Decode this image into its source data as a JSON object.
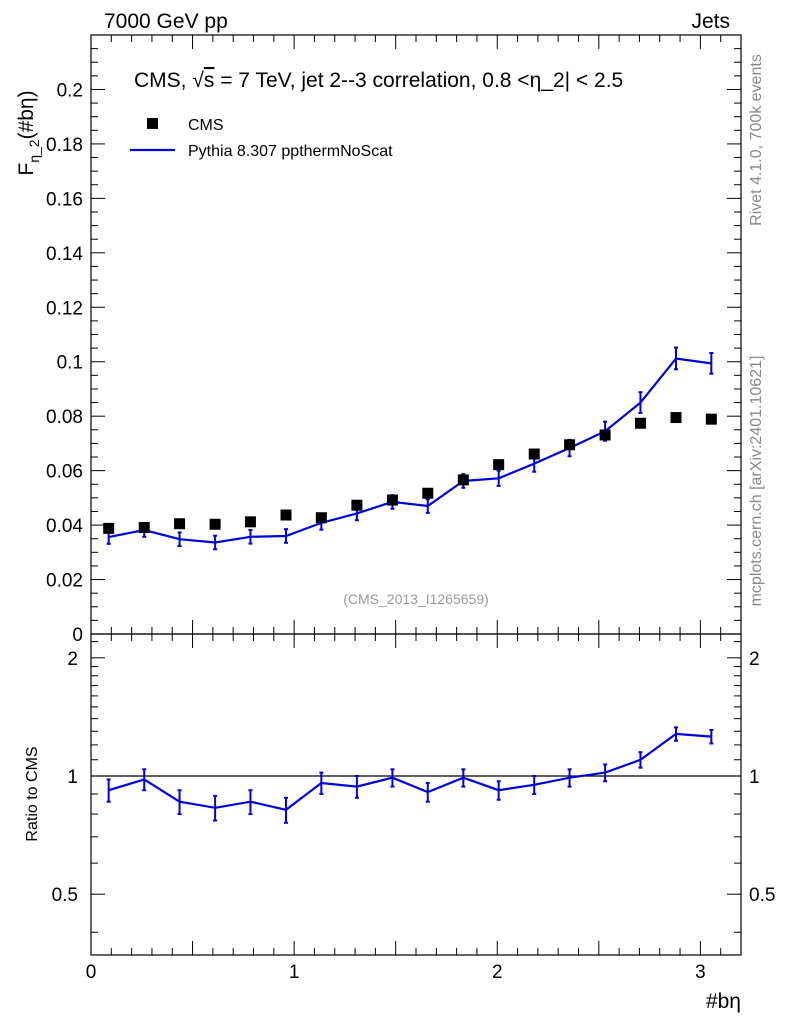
{
  "header": {
    "left": "7000 GeV pp",
    "right": "Jets"
  },
  "side": {
    "rivet": "Rivet 4.1.0,  700k events",
    "mcplots": "mcplots.cern.ch [arXiv:2401.10621]"
  },
  "colors": {
    "data": "#000000",
    "mc": "#0000dd",
    "watermark": "#999999",
    "side_text": "#888888"
  },
  "chart_data": [
    {
      "type": "scatter",
      "panel": "main",
      "title_prefix": "CMS, ",
      "title_sqrt": "s",
      "title_suffix": " = 7 TeV, jet 2--3 correlation, 0.8 <",
      "title_eta": "η",
      "title_end": "_2| < 2.5",
      "ylabel_main": "F",
      "ylabel_sub": "η_2",
      "ylabel_paren": "(#bη)",
      "watermark": "(CMS_2013_I1265659)",
      "xlim": [
        0,
        3.2
      ],
      "ylim": [
        0,
        0.22
      ],
      "ytick_values": [
        0,
        0.02,
        0.04,
        0.06,
        0.08,
        0.1,
        0.12,
        0.14,
        0.16,
        0.18,
        0.2
      ],
      "ytick_labels": [
        "0",
        "0.02",
        "0.04",
        "0.06",
        "0.08",
        "0.1",
        "0.12",
        "0.14",
        "0.16",
        "0.18",
        "0.2"
      ],
      "legend": [
        "CMS",
        "Pythia 8.307 ppthermNoScat"
      ],
      "legend_position": "top-left",
      "x": [
        0.087,
        0.262,
        0.436,
        0.611,
        0.785,
        0.96,
        1.134,
        1.309,
        1.484,
        1.658,
        1.833,
        2.007,
        2.182,
        2.356,
        2.531,
        2.705,
        2.88,
        3.054
      ],
      "series": [
        {
          "name": "CMS",
          "style": "markers",
          "values": [
            0.0388,
            0.0391,
            0.0405,
            0.0403,
            0.0412,
            0.0437,
            0.0427,
            0.0473,
            0.0492,
            0.0517,
            0.0566,
            0.0622,
            0.0661,
            0.0695,
            0.0731,
            0.0774,
            0.0795,
            0.0789
          ]
        },
        {
          "name": "Pythia 8.307 ppthermNoScat",
          "style": "line-errorbars",
          "values": [
            0.0356,
            0.0382,
            0.0348,
            0.0336,
            0.0357,
            0.036,
            0.0408,
            0.0443,
            0.0485,
            0.047,
            0.0562,
            0.0572,
            0.0626,
            0.0683,
            0.0745,
            0.085,
            0.1012,
            0.0994
          ],
          "errors": [
            0.0025,
            0.0025,
            0.0025,
            0.0025,
            0.0025,
            0.0025,
            0.0025,
            0.0025,
            0.0025,
            0.0025,
            0.0025,
            0.0028,
            0.003,
            0.003,
            0.0035,
            0.0038,
            0.004,
            0.0038
          ]
        }
      ]
    },
    {
      "type": "line",
      "panel": "ratio",
      "ylabel": "Ratio to CMS",
      "xlabel": "#bη",
      "xlim": [
        0,
        3.2
      ],
      "ylim": [
        0.35,
        2.3
      ],
      "log_y": true,
      "ytick_values": [
        0.5,
        1,
        2
      ],
      "ytick_labels": [
        "0.5",
        "1",
        "2"
      ],
      "xtick_values": [
        0,
        1,
        2,
        3
      ],
      "xtick_labels": [
        "0",
        "1",
        "2",
        "3"
      ],
      "reference": 1,
      "x": [
        0.087,
        0.262,
        0.436,
        0.611,
        0.785,
        0.96,
        1.134,
        1.309,
        1.484,
        1.658,
        1.833,
        2.007,
        2.182,
        2.356,
        2.531,
        2.705,
        2.88,
        3.054
      ],
      "series": [
        {
          "name": "Pythia 8.307 ppthermNoScat / CMS",
          "values": [
            0.92,
            0.98,
            0.86,
            0.83,
            0.86,
            0.82,
            0.96,
            0.94,
            0.99,
            0.91,
            0.99,
            0.92,
            0.95,
            0.99,
            1.02,
            1.1,
            1.28,
            1.26
          ],
          "errors": [
            0.06,
            0.06,
            0.06,
            0.06,
            0.06,
            0.06,
            0.06,
            0.06,
            0.05,
            0.05,
            0.05,
            0.05,
            0.05,
            0.05,
            0.05,
            0.05,
            0.05,
            0.05
          ]
        }
      ]
    }
  ]
}
